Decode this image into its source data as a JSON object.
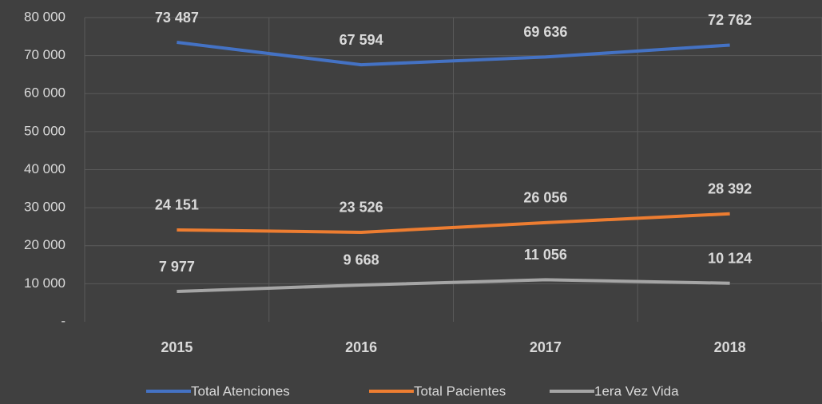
{
  "chart_data": {
    "type": "line",
    "categories": [
      "2015",
      "2016",
      "2017",
      "2018"
    ],
    "series": [
      {
        "name": "Total Atenciones",
        "color": "#4472c4",
        "values": [
          73487,
          67594,
          69636,
          72762
        ],
        "value_labels": [
          "73 487",
          "67 594",
          "69 636",
          "72 762"
        ]
      },
      {
        "name": "Total Pacientes",
        "color": "#ed7d31",
        "values": [
          24151,
          23526,
          26056,
          28392
        ],
        "value_labels": [
          "24 151",
          "23 526",
          "26 056",
          "28 392"
        ]
      },
      {
        "name": "1era Vez Vida",
        "color": "#a5a5a5",
        "values": [
          7977,
          9668,
          11056,
          10124
        ],
        "value_labels": [
          "7 977",
          "9 668",
          "11 056",
          "10 124"
        ]
      }
    ],
    "ylim": [
      0,
      80000
    ],
    "yticks": [
      {
        "value": 0,
        "label": "-"
      },
      {
        "value": 10000,
        "label": "10 000"
      },
      {
        "value": 20000,
        "label": "20 000"
      },
      {
        "value": 30000,
        "label": "30 000"
      },
      {
        "value": 40000,
        "label": "40 000"
      },
      {
        "value": 50000,
        "label": "50 000"
      },
      {
        "value": 60000,
        "label": "60 000"
      },
      {
        "value": 70000,
        "label": "70 000"
      },
      {
        "value": 80000,
        "label": "80 000"
      }
    ],
    "grid": true,
    "legend": "bottom"
  }
}
